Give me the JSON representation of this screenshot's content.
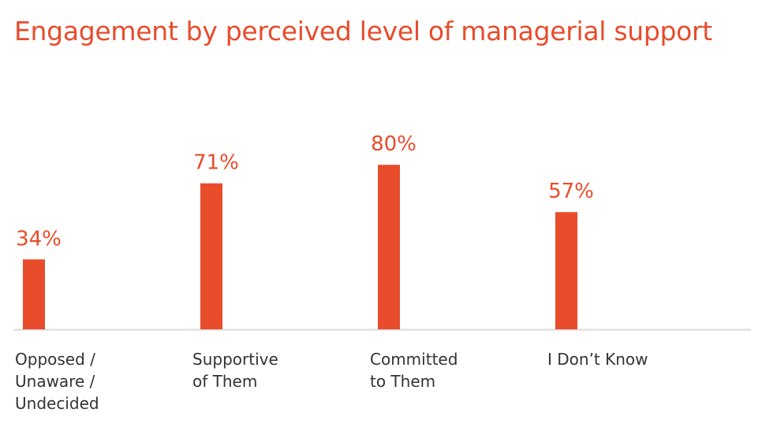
{
  "chart_data": {
    "type": "bar",
    "title": "Engagement by perceived level of managerial support",
    "categories": [
      "Opposed / Unaware / Undecided",
      "Supportive of Them",
      "Committed to Them",
      "I Don’t Know"
    ],
    "category_lines": [
      [
        "Opposed /",
        "Unaware /",
        "Undecided"
      ],
      [
        "Supportive",
        "of Them"
      ],
      [
        "Committed",
        "to Them"
      ],
      [
        "I Don’t Know"
      ]
    ],
    "values": [
      34,
      71,
      80,
      57
    ],
    "value_labels": [
      "34%",
      "71%",
      "80%",
      "57%"
    ],
    "xlabel": "",
    "ylabel": "",
    "ylim": [
      0,
      100
    ],
    "grid": false,
    "colors": {
      "bar": "#E84C2B",
      "title": "#E84C2B",
      "axis": "#D9D9D9",
      "category_text": "#333333"
    }
  }
}
